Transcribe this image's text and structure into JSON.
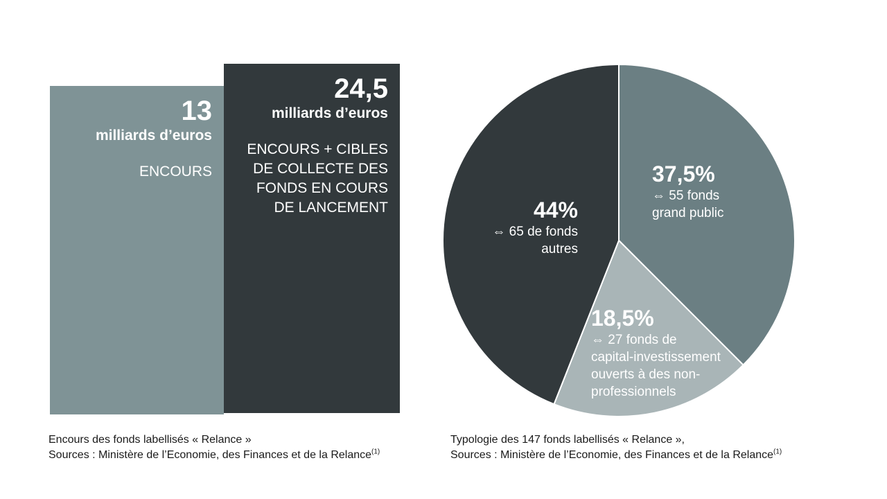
{
  "chart_data": [
    {
      "type": "bar",
      "categories": [
        "ENCOURS",
        "ENCOURS + CIBLES DE COLLECTE DES FONDS EN COURS DE LANCEMENT"
      ],
      "values": [
        13,
        24.5
      ],
      "unit": "milliards d’euros",
      "bars": [
        {
          "value_label": "13",
          "unit_label": "milliards d’euros",
          "desc": "ENCOURS",
          "color": "#7f9396"
        },
        {
          "value_label": "24,5",
          "unit_label": "milliards d’euros",
          "desc": "ENCOURS + CIBLES\nDE COLLECTE DES\nFONDS EN COURS\nDE LANCEMENT",
          "color": "#32393c"
        }
      ],
      "caption_line1": "Encours des fonds labellisés « Relance »",
      "caption_line2": "Sources : Ministère de l’Economie, des Finances et de la Relance",
      "caption_note": "(1)"
    },
    {
      "type": "pie",
      "slices": [
        {
          "value": 37.5,
          "pct_label": "37,5%",
          "desc": "⇔  55 fonds\ngrand public",
          "color": "#6b7f83"
        },
        {
          "value": 18.5,
          "pct_label": "18,5%",
          "desc": "⇔  27 fonds de\ncapital-investissement\nouverts à des non-\nprofessionnels",
          "color": "#a9b5b7"
        },
        {
          "value": 44,
          "pct_label": "44%",
          "desc": "⇔  65 de fonds\nautres",
          "color": "#32393c"
        }
      ],
      "caption_line1": "Typologie des 147 fonds labellisés « Relance »,",
      "caption_line2": "Sources : Ministère de l’Economie, des Finances et de la Relance",
      "caption_note": "(1)"
    }
  ]
}
